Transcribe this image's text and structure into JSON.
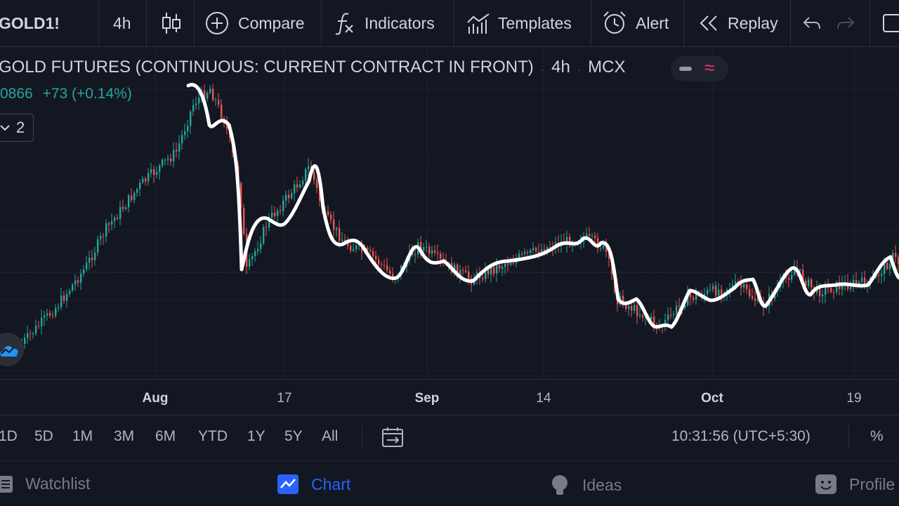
{
  "toolbar": {
    "symbol": "GOLD1!",
    "interval": "4h",
    "compare": "Compare",
    "indicators": "Indicators",
    "templates": "Templates",
    "alert": "Alert",
    "replay": "Replay"
  },
  "legend": {
    "title": "GOLD FUTURES (CONTINUOUS: CURRENT CONTRACT IN FRONT)",
    "interval": "4h",
    "exchange": "MCX",
    "price": "0866",
    "change": "+73 (+0.14%)",
    "indicator_count": "2"
  },
  "xaxis": {
    "labels": [
      "Aug",
      "17",
      "Sep",
      "14",
      "Oct",
      "19"
    ]
  },
  "ranges": [
    "1D",
    "5D",
    "1M",
    "3M",
    "6M",
    "YTD",
    "1Y",
    "5Y",
    "All"
  ],
  "status": {
    "time": "10:31:56 (UTC+5:30)",
    "percent": "%"
  },
  "nav": {
    "watchlist": "Watchlist",
    "chart": "Chart",
    "ideas": "Ideas",
    "profile": "Profile"
  },
  "colors": {
    "background": "#131722",
    "up": "#26a69a",
    "down": "#ef5350",
    "accent": "#2962ff",
    "annotation": "#ffffff"
  }
}
